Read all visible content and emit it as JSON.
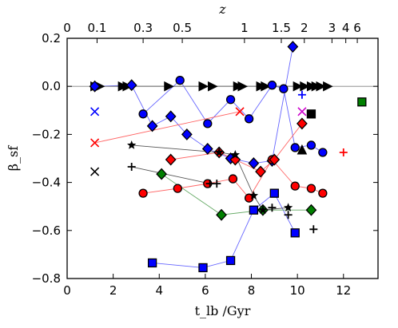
{
  "chart_data": {
    "type": "scatter",
    "title": "",
    "xlabel": "t_lb /Gyr",
    "ylabel": "β_sf",
    "top_xlabel": "z",
    "xlim": [
      0,
      13.5
    ],
    "ylim": [
      -0.8,
      0.2
    ],
    "grid": false,
    "x_ticks": [
      0,
      2,
      4,
      6,
      8,
      10,
      12
    ],
    "x_tick_labels": [
      "0",
      "2",
      "4",
      "6",
      "8",
      "10",
      "12"
    ],
    "y_ticks": [
      0.2,
      0.0,
      -0.2,
      -0.4,
      -0.6,
      -0.8
    ],
    "y_tick_labels": [
      "0.2",
      "0.0",
      "−0.2",
      "−0.4",
      "−0.6",
      "−0.8"
    ],
    "top_ticks": [
      {
        "label": "0",
        "t": 0.0
      },
      {
        "label": "0.1",
        "t": 1.3
      },
      {
        "label": "0.3",
        "t": 3.3
      },
      {
        "label": "0.5",
        "t": 5.0
      },
      {
        "label": "1",
        "t": 7.7
      },
      {
        "label": "1.5",
        "t": 9.3
      },
      {
        "label": "2",
        "t": 10.3
      },
      {
        "label": "3",
        "t": 11.5
      },
      {
        "label": "4",
        "t": 12.1
      },
      {
        "label": "6",
        "t": 12.6
      }
    ],
    "series": [
      {
        "marker": "triangle-right",
        "color": "#000000",
        "connect": true,
        "line_color": "#000000",
        "points": [
          [
            1.2,
            0.0
          ],
          [
            1.4,
            0.0
          ],
          [
            2.4,
            0.0
          ],
          [
            2.6,
            0.0
          ],
          [
            4.4,
            0.0
          ],
          [
            5.9,
            0.0
          ],
          [
            6.3,
            0.0
          ],
          [
            7.4,
            0.0
          ],
          [
            7.6,
            0.0
          ],
          [
            8.4,
            0.0
          ],
          [
            8.6,
            0.0
          ],
          [
            10.0,
            0.0
          ],
          [
            10.3,
            0.0
          ],
          [
            10.6,
            0.0
          ],
          [
            10.8,
            0.0
          ],
          [
            11.0,
            0.0
          ],
          [
            11.3,
            0.0
          ]
        ]
      },
      {
        "marker": "diamond",
        "color": "#0000ff",
        "connect": true,
        "line_color": "#6666ff",
        "points": [
          [
            1.2,
            0.0
          ],
          [
            2.8,
            0.005
          ],
          [
            3.7,
            -0.165
          ],
          [
            4.5,
            -0.125
          ],
          [
            5.2,
            -0.2
          ],
          [
            6.1,
            -0.26
          ],
          [
            7.1,
            -0.3
          ],
          [
            8.1,
            -0.32
          ],
          [
            8.9,
            -0.31
          ],
          [
            9.8,
            0.165
          ]
        ]
      },
      {
        "marker": "circle",
        "color": "#0000ff",
        "connect": true,
        "line_color": "#6666ff",
        "points": [
          [
            3.3,
            -0.115
          ],
          [
            4.9,
            0.025
          ],
          [
            6.1,
            -0.155
          ],
          [
            7.1,
            -0.055
          ],
          [
            7.9,
            -0.135
          ],
          [
            8.9,
            0.005
          ],
          [
            9.4,
            -0.01
          ],
          [
            9.9,
            -0.255
          ],
          [
            10.6,
            -0.245
          ],
          [
            11.1,
            -0.275
          ]
        ]
      },
      {
        "marker": "square",
        "color": "#0000ff",
        "connect": true,
        "line_color": "#6666ff",
        "points": [
          [
            3.7,
            -0.735
          ],
          [
            5.9,
            -0.755
          ],
          [
            7.1,
            -0.725
          ],
          [
            8.1,
            -0.515
          ],
          [
            9.0,
            -0.445
          ],
          [
            9.9,
            -0.61
          ]
        ]
      },
      {
        "marker": "circle",
        "color": "#ff0000",
        "connect": true,
        "line_color": "#ff6666",
        "points": [
          [
            3.3,
            -0.445
          ],
          [
            4.8,
            -0.425
          ],
          [
            6.1,
            -0.405
          ],
          [
            7.2,
            -0.385
          ],
          [
            7.9,
            -0.465
          ],
          [
            8.9,
            -0.305
          ],
          [
            9.9,
            -0.415
          ],
          [
            10.6,
            -0.425
          ],
          [
            11.1,
            -0.445
          ]
        ]
      },
      {
        "marker": "diamond",
        "color": "#ff0000",
        "connect": true,
        "line_color": "#ff6666",
        "points": [
          [
            4.5,
            -0.305
          ],
          [
            6.6,
            -0.275
          ],
          [
            7.3,
            -0.305
          ],
          [
            8.4,
            -0.355
          ],
          [
            9.0,
            -0.305
          ],
          [
            10.2,
            -0.155
          ]
        ]
      },
      {
        "marker": "x",
        "color": "#ff0000",
        "connect": true,
        "line_color": "#ff6666",
        "points": [
          [
            1.2,
            -0.235
          ],
          [
            7.5,
            -0.105
          ]
        ]
      },
      {
        "marker": "diamond",
        "color": "#008000",
        "connect": true,
        "line_color": "#66aa66",
        "points": [
          [
            4.1,
            -0.365
          ],
          [
            6.7,
            -0.535
          ],
          [
            8.5,
            -0.515
          ],
          [
            10.6,
            -0.515
          ]
        ]
      },
      {
        "marker": "star",
        "color": "#000000",
        "connect": true,
        "line_color": "#555555",
        "points": [
          [
            2.8,
            -0.245
          ],
          [
            6.6,
            -0.275
          ],
          [
            7.3,
            -0.285
          ],
          [
            8.1,
            -0.455
          ],
          [
            8.5,
            -0.515
          ],
          [
            9.6,
            -0.505
          ]
        ]
      },
      {
        "marker": "plus",
        "color": "#000000",
        "connect": true,
        "line_color": "#555555",
        "points": [
          [
            2.8,
            -0.335
          ],
          [
            6.2,
            -0.405
          ],
          [
            6.5,
            -0.405
          ]
        ]
      },
      {
        "marker": "plus",
        "color": "#000000",
        "connect": false,
        "points": [
          [
            8.9,
            -0.505
          ],
          [
            9.6,
            -0.535
          ],
          [
            10.7,
            -0.595
          ]
        ]
      },
      {
        "marker": "x",
        "color": "#0000ff",
        "connect": false,
        "points": [
          [
            1.2,
            -0.105
          ]
        ]
      },
      {
        "marker": "x",
        "color": "#000000",
        "connect": false,
        "points": [
          [
            1.2,
            -0.355
          ]
        ]
      },
      {
        "marker": "plus",
        "color": "#0000ff",
        "connect": false,
        "points": [
          [
            10.2,
            -0.035
          ]
        ]
      },
      {
        "marker": "x",
        "color": "#cc00cc",
        "connect": false,
        "points": [
          [
            10.2,
            -0.105
          ]
        ]
      },
      {
        "marker": "square",
        "color": "#000000",
        "connect": false,
        "points": [
          [
            10.6,
            -0.115
          ]
        ]
      },
      {
        "marker": "triangle-up",
        "color": "#000000",
        "connect": false,
        "points": [
          [
            10.2,
            -0.265
          ]
        ]
      },
      {
        "marker": "plus",
        "color": "#ff0000",
        "connect": false,
        "points": [
          [
            12.0,
            -0.275
          ]
        ]
      },
      {
        "marker": "square",
        "color": "#008000",
        "connect": false,
        "points": [
          [
            12.8,
            -0.065
          ]
        ]
      }
    ]
  }
}
